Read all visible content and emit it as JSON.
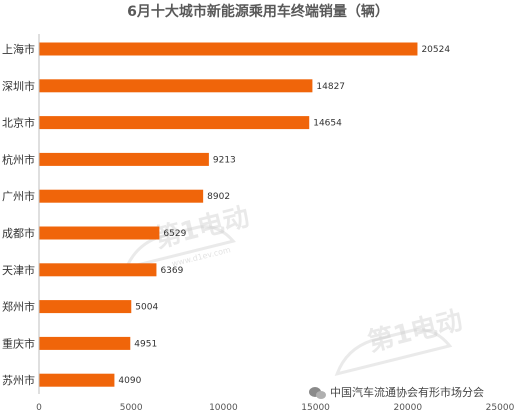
{
  "chart_data": {
    "type": "bar",
    "orientation": "horizontal",
    "title": "6月十大城市新能源乘用车终端销量（辆）",
    "categories": [
      "上海市",
      "深圳市",
      "北京市",
      "杭州市",
      "广州市",
      "成都市",
      "天津市",
      "郑州市",
      "重庆市",
      "苏州市"
    ],
    "values": [
      20524,
      14827,
      14654,
      9213,
      8902,
      6529,
      6369,
      5004,
      4951,
      4090
    ],
    "xlim": [
      0,
      25000
    ],
    "xticks": [
      0,
      5000,
      10000,
      15000,
      20000,
      25000
    ],
    "bar_color": "#f0650a",
    "grid": false,
    "legend": "none"
  },
  "watermark": {
    "logo_text": "第1电动",
    "url_text": "www.d1ev.com"
  },
  "footer": {
    "source_text": "中国汽车流通协会有形市场分会",
    "icon": "wechat-icon"
  }
}
